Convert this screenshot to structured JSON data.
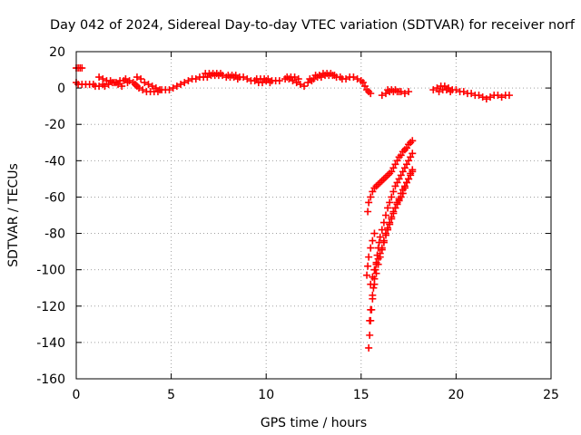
{
  "chart_data": {
    "type": "scatter",
    "title": "Day 042 of 2024, Sidereal Day-to-day VTEC variation (SDTVAR) for receiver norf",
    "xlabel": "GPS time / hours",
    "ylabel": "SDTVAR / TECUs",
    "xlim": [
      0,
      25
    ],
    "ylim": [
      -160,
      20
    ],
    "x_ticks": [
      0,
      5,
      10,
      15,
      20,
      25
    ],
    "y_ticks": [
      20,
      0,
      -20,
      -40,
      -60,
      -80,
      -100,
      -120,
      -140,
      -160
    ],
    "x_tick_labels": [
      "0",
      "5",
      "10",
      "15",
      "20",
      "25"
    ],
    "y_tick_labels": [
      "20",
      "0",
      "-20",
      "-40",
      "-60",
      "-80",
      "-100",
      "-120",
      "-140",
      "-160"
    ],
    "grid": true,
    "marker": "plus",
    "color": "#ff0000",
    "series": [
      {
        "points": [
          [
            0.0,
            11
          ],
          [
            0.1,
            11
          ],
          [
            0.2,
            11
          ],
          [
            0.3,
            11
          ],
          [
            0.0,
            3
          ],
          [
            0.1,
            2
          ],
          [
            0.3,
            2
          ],
          [
            0.5,
            2
          ],
          [
            0.7,
            2
          ],
          [
            0.9,
            2
          ],
          [
            1.0,
            1
          ],
          [
            1.2,
            1
          ],
          [
            1.4,
            2
          ],
          [
            1.5,
            1
          ],
          [
            1.7,
            2
          ],
          [
            1.9,
            3
          ],
          [
            2.1,
            3
          ],
          [
            2.3,
            4
          ],
          [
            2.5,
            4
          ],
          [
            2.7,
            3
          ],
          [
            1.2,
            6
          ],
          [
            1.4,
            5
          ],
          [
            1.6,
            4
          ],
          [
            1.8,
            4
          ],
          [
            2.0,
            3
          ],
          [
            2.2,
            2
          ],
          [
            2.4,
            1
          ],
          [
            2.6,
            5
          ],
          [
            2.8,
            4
          ],
          [
            3.0,
            3
          ],
          [
            3.1,
            2
          ],
          [
            3.2,
            1
          ],
          [
            3.3,
            0
          ],
          [
            3.2,
            6
          ],
          [
            3.4,
            5
          ],
          [
            3.6,
            3
          ],
          [
            3.8,
            2
          ],
          [
            4.0,
            1
          ],
          [
            4.2,
            0
          ],
          [
            4.4,
            -1
          ],
          [
            3.5,
            -1
          ],
          [
            3.7,
            -2
          ],
          [
            3.9,
            -2
          ],
          [
            4.1,
            -2
          ],
          [
            4.3,
            -2
          ],
          [
            4.5,
            -1
          ],
          [
            4.7,
            -1
          ],
          [
            4.9,
            -1
          ],
          [
            5.1,
            0
          ],
          [
            5.3,
            1
          ],
          [
            5.5,
            2
          ],
          [
            5.7,
            3
          ],
          [
            5.9,
            4
          ],
          [
            6.1,
            5
          ],
          [
            6.3,
            5
          ],
          [
            6.5,
            6
          ],
          [
            6.7,
            6
          ],
          [
            6.9,
            6
          ],
          [
            7.1,
            7
          ],
          [
            7.3,
            7
          ],
          [
            7.5,
            7
          ],
          [
            7.7,
            7
          ],
          [
            7.9,
            6
          ],
          [
            8.1,
            6
          ],
          [
            8.3,
            6
          ],
          [
            8.5,
            5
          ],
          [
            6.8,
            8
          ],
          [
            7.0,
            8
          ],
          [
            7.2,
            8
          ],
          [
            7.4,
            8
          ],
          [
            7.6,
            8
          ],
          [
            8.0,
            7
          ],
          [
            8.2,
            7
          ],
          [
            8.4,
            7
          ],
          [
            8.6,
            6
          ],
          [
            8.8,
            6
          ],
          [
            9.0,
            5
          ],
          [
            9.2,
            4
          ],
          [
            9.4,
            4
          ],
          [
            9.5,
            5
          ],
          [
            9.7,
            5
          ],
          [
            9.9,
            5
          ],
          [
            10.1,
            5
          ],
          [
            10.3,
            4
          ],
          [
            10.5,
            4
          ],
          [
            10.7,
            4
          ],
          [
            9.6,
            3
          ],
          [
            9.8,
            3
          ],
          [
            10.0,
            4
          ],
          [
            10.2,
            3
          ],
          [
            11.0,
            5
          ],
          [
            11.2,
            5
          ],
          [
            11.4,
            4
          ],
          [
            11.6,
            3
          ],
          [
            11.8,
            2
          ],
          [
            12.0,
            1
          ],
          [
            12.2,
            3
          ],
          [
            12.4,
            4
          ],
          [
            11.1,
            6
          ],
          [
            11.3,
            6
          ],
          [
            11.5,
            6
          ],
          [
            11.7,
            5
          ],
          [
            12.3,
            5
          ],
          [
            12.5,
            5
          ],
          [
            12.7,
            6
          ],
          [
            12.9,
            6
          ],
          [
            13.1,
            7
          ],
          [
            13.3,
            7
          ],
          [
            13.5,
            7
          ],
          [
            13.7,
            6
          ],
          [
            13.9,
            6
          ],
          [
            12.6,
            7
          ],
          [
            12.8,
            7
          ],
          [
            13.0,
            8
          ],
          [
            13.2,
            8
          ],
          [
            13.4,
            8
          ],
          [
            13.6,
            7
          ],
          [
            14.0,
            5
          ],
          [
            14.2,
            5
          ],
          [
            14.4,
            6
          ],
          [
            14.6,
            6
          ],
          [
            14.8,
            5
          ],
          [
            15.0,
            4
          ],
          [
            15.1,
            3
          ],
          [
            15.2,
            1
          ],
          [
            15.3,
            -1
          ],
          [
            15.4,
            -2
          ],
          [
            15.5,
            -3
          ],
          [
            16.1,
            -4
          ],
          [
            16.3,
            -3
          ],
          [
            16.5,
            -2
          ],
          [
            16.7,
            -2
          ],
          [
            16.9,
            -2
          ],
          [
            17.1,
            -2
          ],
          [
            17.3,
            -3
          ],
          [
            17.5,
            -2
          ],
          [
            16.4,
            -1
          ],
          [
            16.6,
            -1
          ],
          [
            16.8,
            -1
          ],
          [
            17.0,
            -2
          ],
          [
            18.8,
            -1
          ],
          [
            19.0,
            0
          ],
          [
            19.2,
            1
          ],
          [
            19.4,
            1
          ],
          [
            19.6,
            0
          ],
          [
            19.8,
            -1
          ],
          [
            20.0,
            -1
          ],
          [
            20.2,
            -2
          ],
          [
            20.4,
            -2
          ],
          [
            20.6,
            -3
          ],
          [
            20.8,
            -3
          ],
          [
            19.1,
            -2
          ],
          [
            19.3,
            -1
          ],
          [
            19.5,
            -1
          ],
          [
            19.7,
            -2
          ],
          [
            21.0,
            -4
          ],
          [
            21.2,
            -4
          ],
          [
            21.4,
            -5
          ],
          [
            21.6,
            -6
          ],
          [
            21.8,
            -5
          ],
          [
            22.0,
            -4
          ],
          [
            22.2,
            -4
          ],
          [
            22.4,
            -5
          ],
          [
            22.6,
            -4
          ],
          [
            22.8,
            -4
          ],
          [
            15.35,
            -68
          ],
          [
            15.4,
            -63
          ],
          [
            15.5,
            -60
          ],
          [
            15.6,
            -57
          ],
          [
            15.7,
            -55
          ],
          [
            15.8,
            -54
          ],
          [
            15.9,
            -53
          ],
          [
            16.0,
            -52
          ],
          [
            16.1,
            -51
          ],
          [
            16.2,
            -50
          ],
          [
            16.3,
            -49
          ],
          [
            16.4,
            -48
          ],
          [
            16.5,
            -47
          ],
          [
            16.6,
            -46
          ],
          [
            16.7,
            -44
          ],
          [
            16.8,
            -42
          ],
          [
            16.9,
            -40
          ],
          [
            17.0,
            -38
          ],
          [
            17.1,
            -37
          ],
          [
            17.2,
            -35
          ],
          [
            17.3,
            -34
          ],
          [
            17.4,
            -33
          ],
          [
            17.5,
            -31
          ],
          [
            17.6,
            -30
          ],
          [
            17.7,
            -29
          ],
          [
            15.4,
            -143
          ],
          [
            15.45,
            -136
          ],
          [
            15.5,
            -128
          ],
          [
            15.55,
            -122
          ],
          [
            15.6,
            -116
          ],
          [
            15.65,
            -110
          ],
          [
            15.7,
            -105
          ],
          [
            15.75,
            -100
          ],
          [
            15.8,
            -96
          ],
          [
            15.85,
            -92
          ],
          [
            15.9,
            -88
          ],
          [
            15.95,
            -85
          ],
          [
            16.0,
            -82
          ],
          [
            16.1,
            -78
          ],
          [
            16.2,
            -74
          ],
          [
            16.3,
            -70
          ],
          [
            16.4,
            -66
          ],
          [
            16.5,
            -63
          ],
          [
            16.6,
            -60
          ],
          [
            16.7,
            -57
          ],
          [
            16.8,
            -54
          ],
          [
            16.9,
            -52
          ],
          [
            17.0,
            -50
          ],
          [
            17.1,
            -48
          ],
          [
            17.2,
            -46
          ],
          [
            17.3,
            -44
          ],
          [
            17.4,
            -42
          ],
          [
            17.5,
            -40
          ],
          [
            17.6,
            -38
          ],
          [
            17.7,
            -36
          ],
          [
            15.45,
            -128
          ],
          [
            15.5,
            -122
          ],
          [
            15.6,
            -114
          ],
          [
            15.7,
            -108
          ],
          [
            15.8,
            -102
          ],
          [
            15.9,
            -97
          ],
          [
            16.0,
            -93
          ],
          [
            16.1,
            -89
          ],
          [
            16.2,
            -85
          ],
          [
            16.3,
            -81
          ],
          [
            16.4,
            -78
          ],
          [
            16.5,
            -75
          ],
          [
            16.6,
            -72
          ],
          [
            16.7,
            -69
          ],
          [
            16.8,
            -66
          ],
          [
            16.9,
            -63
          ],
          [
            17.0,
            -61
          ],
          [
            17.1,
            -58
          ],
          [
            17.2,
            -56
          ],
          [
            17.3,
            -54
          ],
          [
            17.4,
            -52
          ],
          [
            17.5,
            -50
          ],
          [
            17.6,
            -48
          ],
          [
            17.7,
            -46
          ],
          [
            15.5,
            -108
          ],
          [
            15.6,
            -104
          ],
          [
            15.7,
            -100
          ],
          [
            15.8,
            -97
          ],
          [
            15.9,
            -94
          ],
          [
            16.0,
            -91
          ],
          [
            16.1,
            -88
          ],
          [
            16.2,
            -84
          ],
          [
            16.3,
            -80
          ],
          [
            16.4,
            -77
          ],
          [
            16.5,
            -74
          ],
          [
            16.6,
            -71
          ],
          [
            16.7,
            -68
          ],
          [
            16.8,
            -66
          ],
          [
            16.9,
            -64
          ],
          [
            17.0,
            -62
          ],
          [
            17.1,
            -60
          ],
          [
            17.2,
            -58
          ],
          [
            17.3,
            -55
          ],
          [
            17.4,
            -52
          ],
          [
            17.5,
            -50
          ],
          [
            17.6,
            -47
          ],
          [
            17.7,
            -45
          ],
          [
            15.3,
            -103
          ],
          [
            15.35,
            -98
          ],
          [
            15.4,
            -93
          ],
          [
            15.5,
            -88
          ],
          [
            15.6,
            -84
          ],
          [
            15.7,
            -80
          ]
        ]
      }
    ]
  }
}
